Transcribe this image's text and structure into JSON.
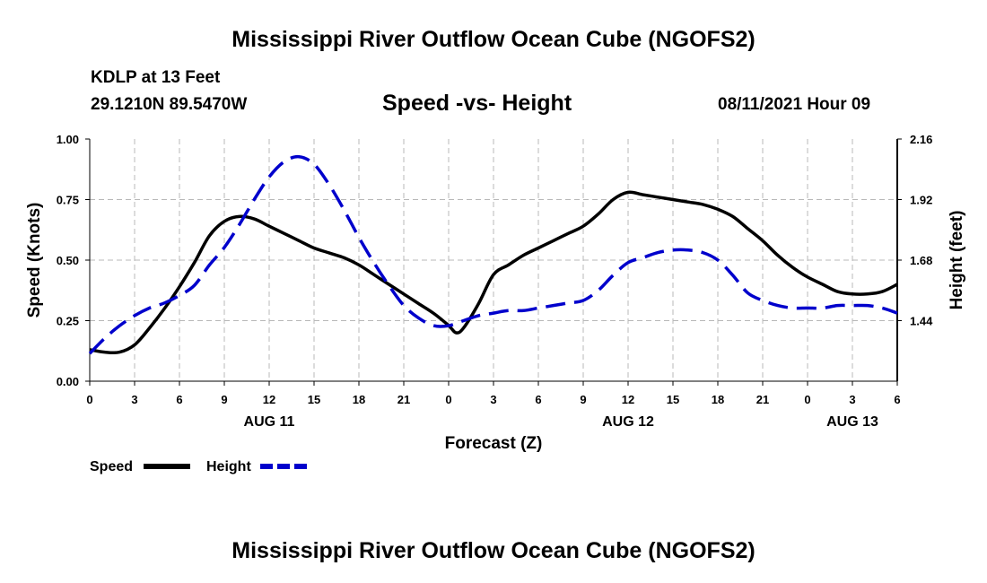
{
  "header": {
    "main_title": "Mississippi River Outflow Ocean Cube (NGOFS2)",
    "station": "KDLP at 13 Feet",
    "coordinates": "29.1210N  89.5470W",
    "subtitle": "Speed -vs- Height",
    "datetime": "08/11/2021 Hour 09"
  },
  "footer": {
    "title": "Mississippi River Outflow Ocean Cube (NGOFS2)"
  },
  "chart_data": {
    "type": "line",
    "title": "Speed -vs- Height",
    "xlabel": "Forecast (Z)",
    "ylabel": "Speed (Knots)",
    "y2label": "Height (feet)",
    "x_unit": "hours since 2021-08-11 00Z",
    "xlim": [
      0,
      54
    ],
    "ylim": [
      0,
      1
    ],
    "y2lim": [
      1.2,
      2.16
    ],
    "x_ticks": [
      0,
      3,
      6,
      9,
      12,
      15,
      18,
      21,
      24,
      27,
      30,
      33,
      36,
      39,
      42,
      45,
      48,
      51,
      54
    ],
    "x_tick_labels": [
      "0",
      "3",
      "6",
      "9",
      "12",
      "15",
      "18",
      "21",
      "0",
      "3",
      "6",
      "9",
      "12",
      "15",
      "18",
      "21",
      "0",
      "3",
      "6"
    ],
    "y_ticks": [
      0,
      0.25,
      0.5,
      0.75,
      1.0
    ],
    "y_tick_labels": [
      "0.00",
      "0.25",
      "0.50",
      "0.75",
      "1.00"
    ],
    "y2_ticks": [
      1.44,
      1.68,
      1.92,
      2.16
    ],
    "y2_tick_labels": [
      "1.44",
      "1.68",
      "1.92",
      "2.16"
    ],
    "date_labels": [
      {
        "x": 12,
        "label": "AUG 11"
      },
      {
        "x": 36,
        "label": "AUG 12"
      },
      {
        "x": 51,
        "label": "AUG 13"
      }
    ],
    "grid": true,
    "legend_position": "bottom-left",
    "series": [
      {
        "name": "Speed",
        "axis": "left",
        "color": "#000000",
        "style": "solid",
        "x": [
          0,
          1,
          2,
          3,
          4,
          5,
          6,
          7,
          8,
          9,
          10,
          11,
          12,
          13,
          14,
          15,
          16,
          17,
          18,
          19,
          20,
          21,
          22,
          23,
          24,
          24.5,
          25,
          26,
          27,
          28,
          29,
          30,
          31,
          32,
          33,
          34,
          35,
          36,
          37,
          38,
          39,
          40,
          41,
          42,
          43,
          44,
          45,
          46,
          47,
          48,
          49,
          50,
          51,
          52,
          53,
          54
        ],
        "values": [
          0.13,
          0.12,
          0.12,
          0.15,
          0.22,
          0.3,
          0.39,
          0.49,
          0.6,
          0.66,
          0.68,
          0.67,
          0.64,
          0.61,
          0.58,
          0.55,
          0.53,
          0.51,
          0.48,
          0.44,
          0.4,
          0.36,
          0.32,
          0.28,
          0.23,
          0.2,
          0.22,
          0.32,
          0.44,
          0.48,
          0.52,
          0.55,
          0.58,
          0.61,
          0.64,
          0.69,
          0.75,
          0.78,
          0.77,
          0.76,
          0.75,
          0.74,
          0.73,
          0.71,
          0.68,
          0.63,
          0.58,
          0.52,
          0.47,
          0.43,
          0.4,
          0.37,
          0.36,
          0.36,
          0.37,
          0.4
        ]
      },
      {
        "name": "Height",
        "axis": "right",
        "color": "#0000cc",
        "style": "dashed",
        "x": [
          0,
          1,
          2,
          3,
          4,
          5,
          6,
          7,
          8,
          9,
          10,
          11,
          12,
          13,
          14,
          15,
          16,
          17,
          18,
          19,
          20,
          21,
          22,
          23,
          24,
          25,
          26,
          27,
          28,
          29,
          30,
          31,
          32,
          33,
          34,
          35,
          36,
          37,
          38,
          39,
          40,
          41,
          42,
          43,
          44,
          45,
          46,
          47,
          48,
          49,
          50,
          51,
          52,
          53,
          54
        ],
        "values": [
          1.31,
          1.37,
          1.42,
          1.46,
          1.49,
          1.51,
          1.54,
          1.58,
          1.66,
          1.73,
          1.82,
          1.92,
          2.01,
          2.07,
          2.09,
          2.06,
          1.98,
          1.88,
          1.77,
          1.67,
          1.58,
          1.5,
          1.45,
          1.42,
          1.42,
          1.44,
          1.46,
          1.47,
          1.48,
          1.48,
          1.49,
          1.5,
          1.51,
          1.52,
          1.56,
          1.62,
          1.67,
          1.69,
          1.71,
          1.72,
          1.72,
          1.71,
          1.68,
          1.62,
          1.55,
          1.52,
          1.5,
          1.49,
          1.49,
          1.49,
          1.5,
          1.5,
          1.5,
          1.49,
          1.47
        ]
      }
    ]
  }
}
